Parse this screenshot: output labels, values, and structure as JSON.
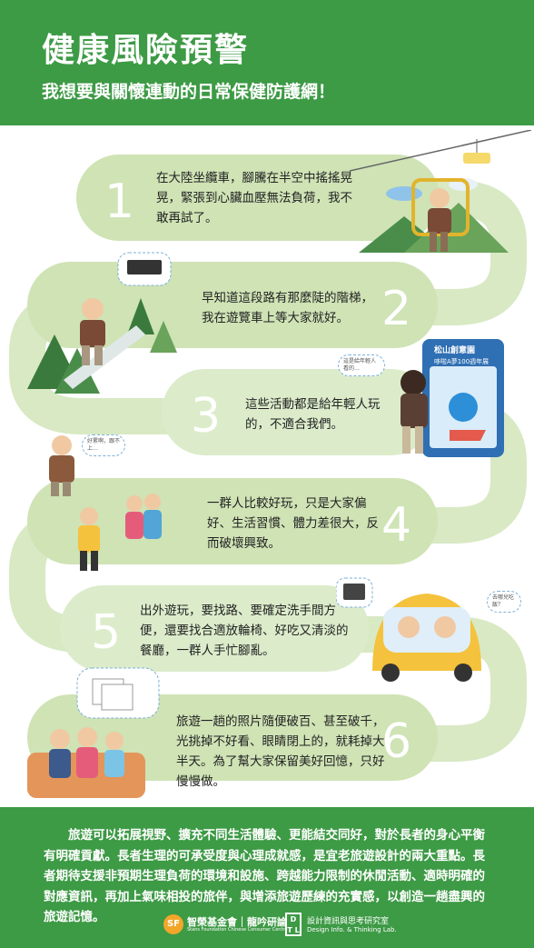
{
  "header": {
    "title": "健康風險預警",
    "subtitle": "我想要與關懷連動的日常保健防護網！"
  },
  "steps": [
    {
      "number": "1",
      "text": "在大陸坐纜車，腳騰在半空中搖搖晃晃，緊張到心臟血壓無法負荷，我不敢再試了。"
    },
    {
      "number": "2",
      "text": "早知道這段路有那麼陡的階梯，我在遊覽車上等大家就好。"
    },
    {
      "number": "3",
      "text": "這些活動都是給年輕人玩的，不適合我們。"
    },
    {
      "number": "4",
      "text": "一群人比較好玩，只是大家偏好、生活習慣、體力差很大，反而破壞興致。"
    },
    {
      "number": "5",
      "text": "出外遊玩，要找路、要確定洗手間方便，還要找合適放輪椅、好吃又清淡的餐廳，一群人手忙腳亂。"
    },
    {
      "number": "6",
      "text": "旅遊一趟的照片隨便破百、甚至破千，光挑掉不好看、眼睛閉上的，就耗掉大半天。為了幫大家保留美好回憶，只好慢慢做。"
    }
  ],
  "bubbles": {
    "step3": "這是給年輕人看的…",
    "step4": "好累啊，跟不上…",
    "step5": "去哪兒吃飯？"
  },
  "sign": {
    "title": "松山創意園",
    "badge": "哆啦A夢100週年展"
  },
  "summary": "旅遊可以拓展視野、擴充不同生活體驗、更能結交同好，對於長者的身心平衡有明確貢獻。長者生理的可承受度與心理成就感，是宜老旅遊設計的兩大重點。長者期待支援非預期生理負荷的環境和設施、跨越能力限制的休閒活動、適時明確的對應資訊，再加上氣味相投的旅伴，與增添旅遊歷練的充實感，以創造一趟盡興的旅遊記憶。",
  "logos": {
    "sf_mark": "SF",
    "sf_name": "智榮基金會｜龍吟研論",
    "sf_english": "Stans Foundation Chinese Consumer Centre",
    "lab_mark": "D T L",
    "lab_name": "設計資訊與思考研究室",
    "lab_english": "Design Info. & Thinking Lab."
  },
  "colors": {
    "header_green": "#3d9a45",
    "band_green": "#cfe3b5",
    "track_green": "#b8d59b"
  }
}
